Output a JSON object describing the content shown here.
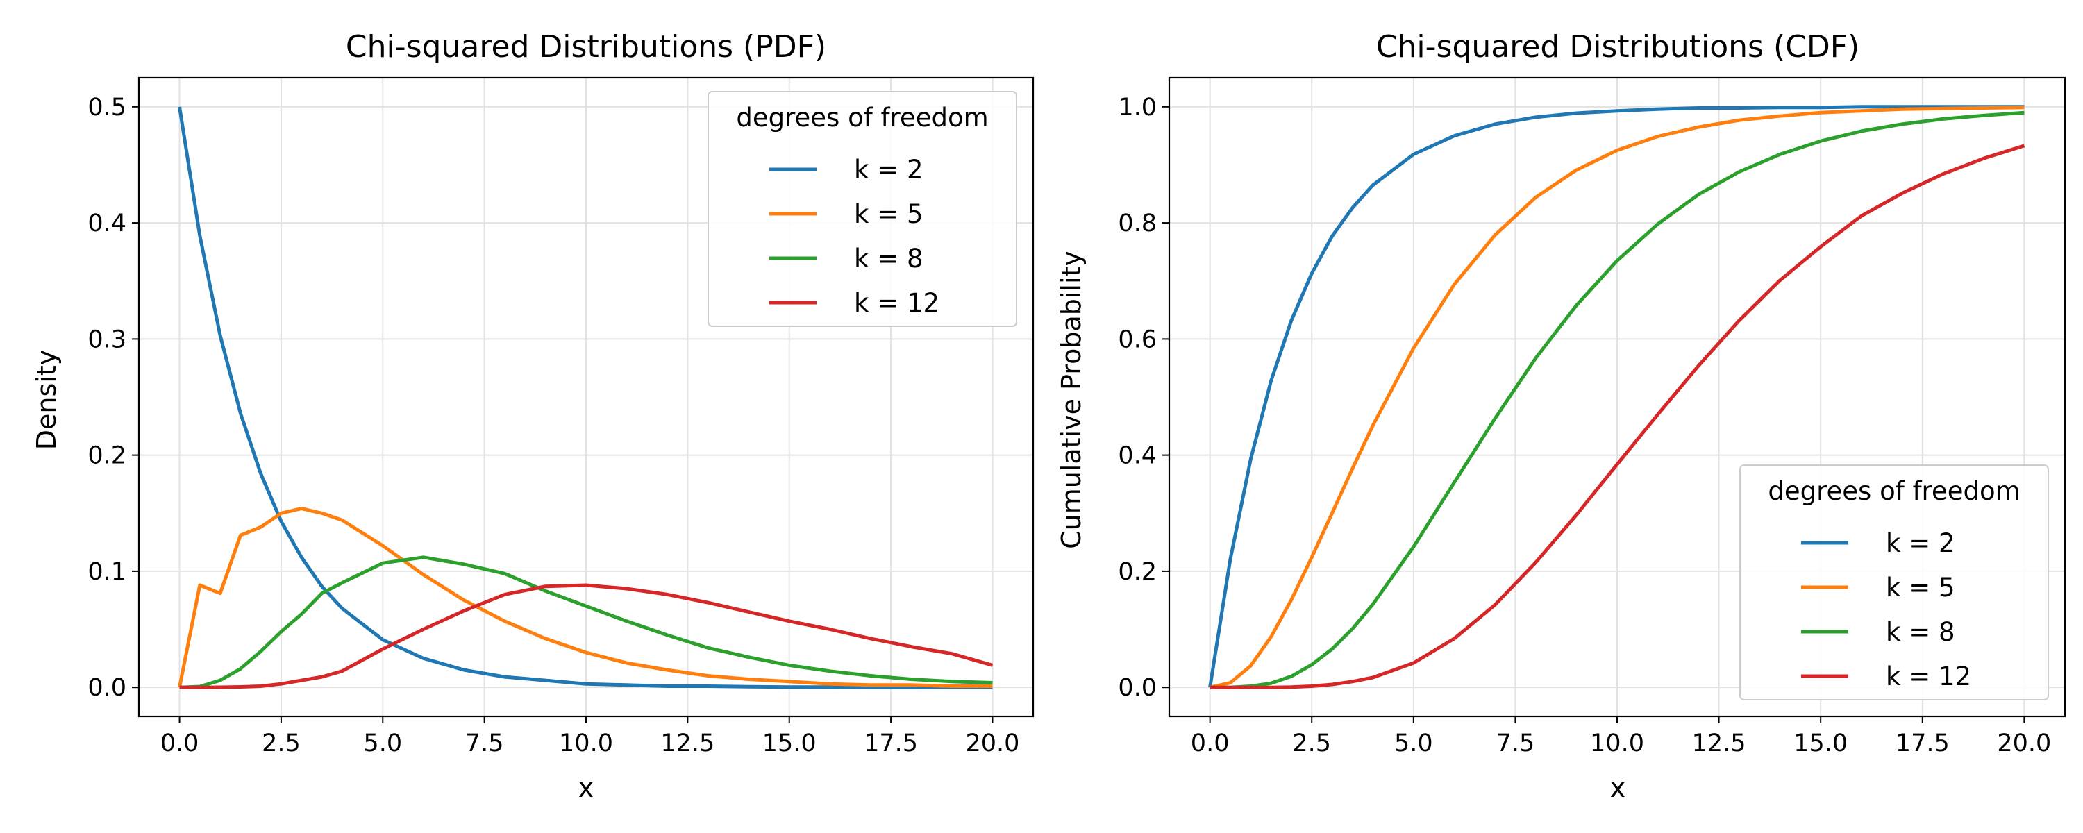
{
  "chart_data": [
    {
      "type": "line",
      "title": "Chi-squared Distributions (PDF)",
      "xlabel": "x",
      "ylabel": "Density",
      "xlim": [
        -1.0,
        21.0
      ],
      "ylim": [
        -0.025,
        0.525
      ],
      "xticks": [
        0,
        2.5,
        5,
        7.5,
        10,
        12.5,
        15,
        17.5,
        20
      ],
      "xtick_labels": [
        "0.0",
        "2.5",
        "5.0",
        "7.5",
        "10.0",
        "12.5",
        "15.0",
        "17.5",
        "20.0"
      ],
      "yticks": [
        0,
        0.1,
        0.2,
        0.3,
        0.4,
        0.5
      ],
      "ytick_labels": [
        "0.0",
        "0.1",
        "0.2",
        "0.3",
        "0.4",
        "0.5"
      ],
      "grid": true,
      "legend": {
        "title": "degrees of freedom",
        "placement": "top-right"
      },
      "x": [
        0,
        0.5,
        1,
        1.5,
        2,
        2.5,
        3,
        3.5,
        4,
        5,
        6,
        7,
        8,
        9,
        10,
        11,
        12,
        13,
        14,
        15,
        16,
        17,
        18,
        19,
        20
      ],
      "series": [
        {
          "name": "k = 2",
          "color": "#1f77b4",
          "values": [
            0.5,
            0.389,
            0.303,
            0.236,
            0.184,
            0.143,
            0.112,
            0.087,
            0.068,
            0.041,
            0.025,
            0.015,
            0.009,
            0.006,
            0.003,
            0.002,
            0.001,
            0.001,
            0.0005,
            0.0003,
            0.0002,
            0.0001,
            0.0001,
            0.0,
            0.0
          ]
        },
        {
          "name": "k = 5",
          "color": "#ff7f0e",
          "values": [
            0.0,
            0.088,
            0.081,
            0.131,
            0.138,
            0.15,
            0.154,
            0.15,
            0.144,
            0.122,
            0.097,
            0.075,
            0.057,
            0.042,
            0.03,
            0.021,
            0.015,
            0.01,
            0.007,
            0.005,
            0.003,
            0.002,
            0.002,
            0.001,
            0.001
          ]
        },
        {
          "name": "k = 8",
          "color": "#2ca02c",
          "values": [
            0.0,
            0.0007,
            0.006,
            0.016,
            0.031,
            0.048,
            0.063,
            0.081,
            0.09,
            0.107,
            0.112,
            0.106,
            0.098,
            0.083,
            0.07,
            0.057,
            0.045,
            0.034,
            0.026,
            0.019,
            0.014,
            0.01,
            0.007,
            0.005,
            0.004
          ]
        },
        {
          "name": "k = 12",
          "color": "#d62728",
          "values": [
            0.0,
            0.0,
            0.0001,
            0.0004,
            0.001,
            0.003,
            0.006,
            0.009,
            0.014,
            0.033,
            0.05,
            0.066,
            0.08,
            0.087,
            0.088,
            0.085,
            0.08,
            0.073,
            0.065,
            0.057,
            0.05,
            0.042,
            0.035,
            0.029,
            0.019
          ]
        }
      ]
    },
    {
      "type": "line",
      "title": "Chi-squared Distributions (CDF)",
      "xlabel": "x",
      "ylabel": "Cumulative Probability",
      "xlim": [
        -1.0,
        21.0
      ],
      "ylim": [
        -0.05,
        1.05
      ],
      "xticks": [
        0,
        2.5,
        5,
        7.5,
        10,
        12.5,
        15,
        17.5,
        20
      ],
      "xtick_labels": [
        "0.0",
        "2.5",
        "5.0",
        "7.5",
        "10.0",
        "12.5",
        "15.0",
        "17.5",
        "20.0"
      ],
      "yticks": [
        0,
        0.2,
        0.4,
        0.6,
        0.8,
        1.0
      ],
      "ytick_labels": [
        "0.0",
        "0.2",
        "0.4",
        "0.6",
        "0.8",
        "1.0"
      ],
      "grid": true,
      "legend": {
        "title": "degrees of freedom",
        "placement": "bottom-right"
      },
      "x": [
        0,
        0.5,
        1,
        1.5,
        2,
        2.5,
        3,
        3.5,
        4,
        5,
        6,
        7,
        8,
        9,
        10,
        11,
        12,
        13,
        14,
        15,
        16,
        17,
        18,
        19,
        20
      ],
      "series": [
        {
          "name": "k = 2",
          "color": "#1f77b4",
          "values": [
            0.0,
            0.221,
            0.393,
            0.528,
            0.632,
            0.713,
            0.777,
            0.826,
            0.865,
            0.918,
            0.95,
            0.97,
            0.982,
            0.989,
            0.993,
            0.996,
            0.998,
            0.998,
            0.999,
            0.999,
            1.0,
            1.0,
            1.0,
            1.0,
            1.0
          ]
        },
        {
          "name": "k = 5",
          "color": "#ff7f0e",
          "values": [
            0.0,
            0.008,
            0.037,
            0.087,
            0.151,
            0.224,
            0.3,
            0.377,
            0.451,
            0.584,
            0.694,
            0.779,
            0.844,
            0.891,
            0.925,
            0.949,
            0.965,
            0.977,
            0.984,
            0.99,
            0.993,
            0.996,
            0.997,
            0.998,
            0.999
          ]
        },
        {
          "name": "k = 8",
          "color": "#2ca02c",
          "values": [
            0.0,
            0.0,
            0.002,
            0.007,
            0.019,
            0.039,
            0.066,
            0.101,
            0.143,
            0.242,
            0.353,
            0.463,
            0.567,
            0.658,
            0.735,
            0.798,
            0.849,
            0.888,
            0.918,
            0.941,
            0.958,
            0.97,
            0.979,
            0.985,
            0.99
          ]
        },
        {
          "name": "k = 12",
          "color": "#d62728",
          "values": [
            0.0,
            0.0,
            0.0,
            0.0,
            0.0006,
            0.002,
            0.005,
            0.01,
            0.017,
            0.042,
            0.084,
            0.142,
            0.215,
            0.297,
            0.384,
            0.47,
            0.554,
            0.632,
            0.701,
            0.759,
            0.812,
            0.851,
            0.884,
            0.911,
            0.933
          ]
        }
      ]
    }
  ]
}
